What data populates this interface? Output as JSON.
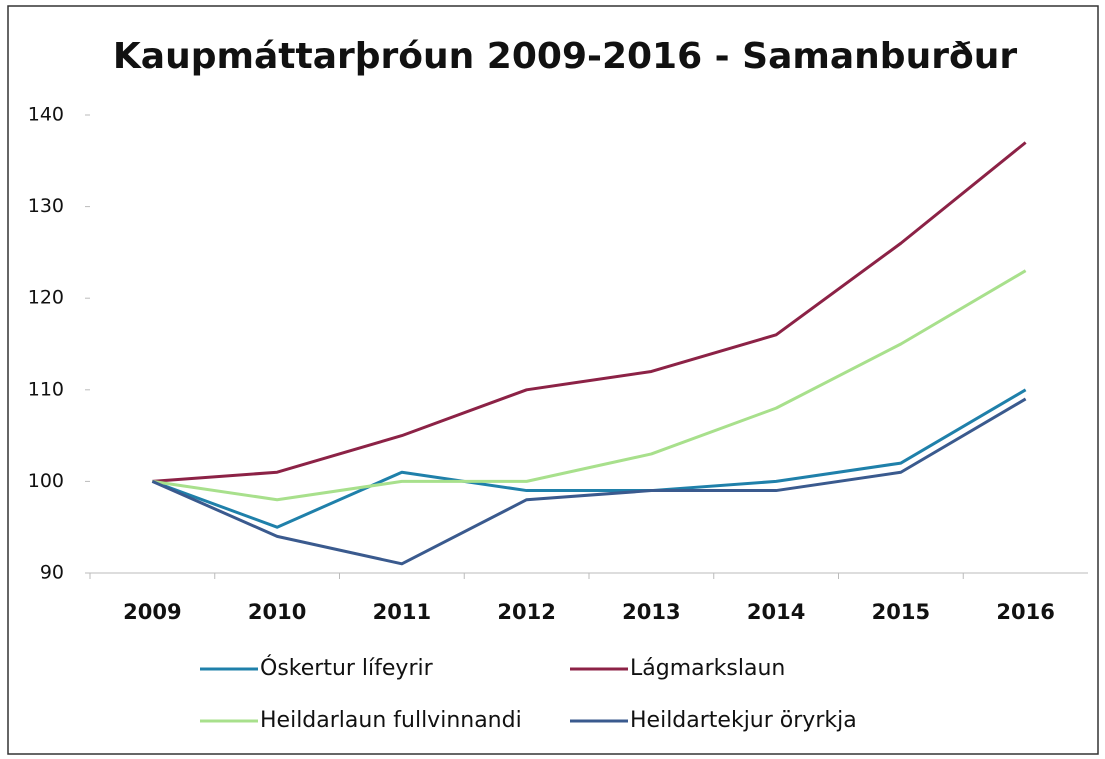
{
  "chart_data": {
    "type": "line",
    "title": "Kaupmáttarþróun 2009-2016 - Samanburður",
    "categories": [
      "2009",
      "2010",
      "2011",
      "2012",
      "2013",
      "2014",
      "2015",
      "2016"
    ],
    "series": [
      {
        "name": "Óskertur lífeyrir",
        "color": "#1f80aa",
        "values": [
          100,
          95,
          101,
          99,
          99,
          100,
          102,
          110
        ]
      },
      {
        "name": "Lágmarkslaun",
        "color": "#8c2246",
        "values": [
          100,
          101,
          105,
          110,
          112,
          116,
          126,
          137
        ]
      },
      {
        "name": "Heildarlaun fullvinnandi",
        "color": "#a8e08c",
        "values": [
          100,
          98,
          100,
          100,
          103,
          108,
          115,
          123
        ]
      },
      {
        "name": "Heildartekjur öryrkja",
        "color": "#3a5a8e",
        "values": [
          100,
          94,
          91,
          98,
          99,
          99,
          101,
          109
        ]
      }
    ],
    "ylim": [
      90,
      140
    ],
    "yticks": [
      90,
      100,
      110,
      120,
      130,
      140
    ]
  }
}
